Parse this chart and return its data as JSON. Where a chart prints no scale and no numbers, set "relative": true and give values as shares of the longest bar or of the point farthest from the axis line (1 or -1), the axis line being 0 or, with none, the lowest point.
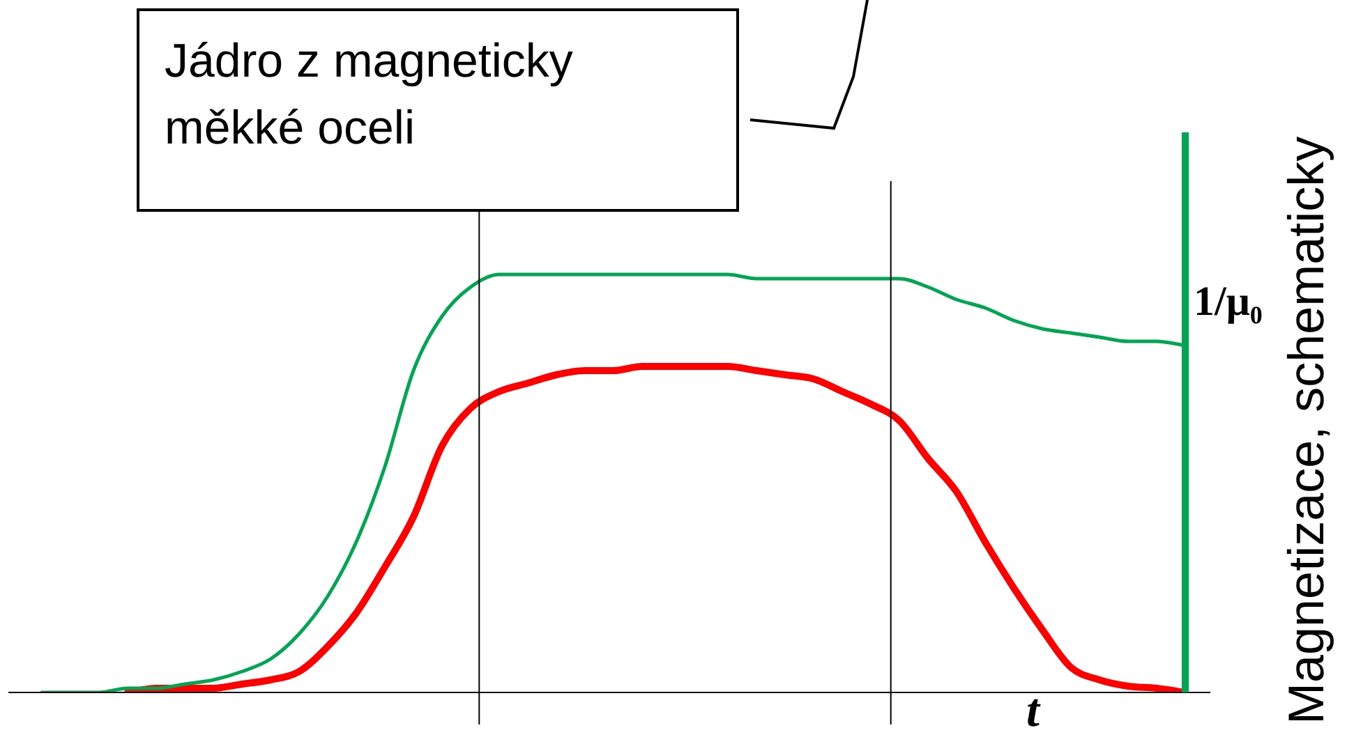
{
  "chart_data": {
    "type": "line",
    "relative": true,
    "xlabel": "t",
    "y2label": "Magnetizace, schematicky",
    "categories": [
      null,
      null,
      null,
      null,
      null,
      null,
      null,
      null,
      null,
      null,
      null,
      null,
      null,
      null,
      null,
      null,
      null,
      null,
      null,
      null,
      null,
      null,
      null,
      null,
      null,
      null,
      null,
      null,
      null,
      null,
      null,
      null,
      null,
      null,
      null,
      null,
      null,
      null,
      null,
      null,
      null
    ],
    "series": [
      {
        "color": "#00a651",
        "values": [
          0,
          0,
          0,
          0.01,
          0.01,
          0.02,
          0.03,
          0.05,
          0.08,
          0.14,
          0.23,
          0.36,
          0.54,
          0.77,
          0.9,
          0.97,
          1,
          1,
          1,
          1,
          1,
          1,
          1,
          1,
          1,
          0.99,
          0.99,
          0.99,
          0.99,
          0.99,
          0.99,
          0.97,
          0.94,
          0.92,
          0.89,
          0.87,
          0.86,
          0.85,
          0.84,
          0.84,
          0.83
        ]
      },
      {
        "color": "#ff0000",
        "values": [
          null,
          null,
          null,
          0,
          0.01,
          0.01,
          0.01,
          0.02,
          0.03,
          0.05,
          0.11,
          0.19,
          0.3,
          0.42,
          0.59,
          0.68,
          0.72,
          0.74,
          0.76,
          0.77,
          0.77,
          0.78,
          0.78,
          0.78,
          0.78,
          0.77,
          0.76,
          0.75,
          0.72,
          0.69,
          0.65,
          0.56,
          0.48,
          0.36,
          0.25,
          0.15,
          0.06,
          0.03,
          0.015,
          0.01,
          0
        ]
      }
    ],
    "annotations": [
      "Jádro z magneticky\nměkké oceli",
      "1/μ₀"
    ],
    "legend": false,
    "marker": "none",
    "line_style": "solid"
  }
}
